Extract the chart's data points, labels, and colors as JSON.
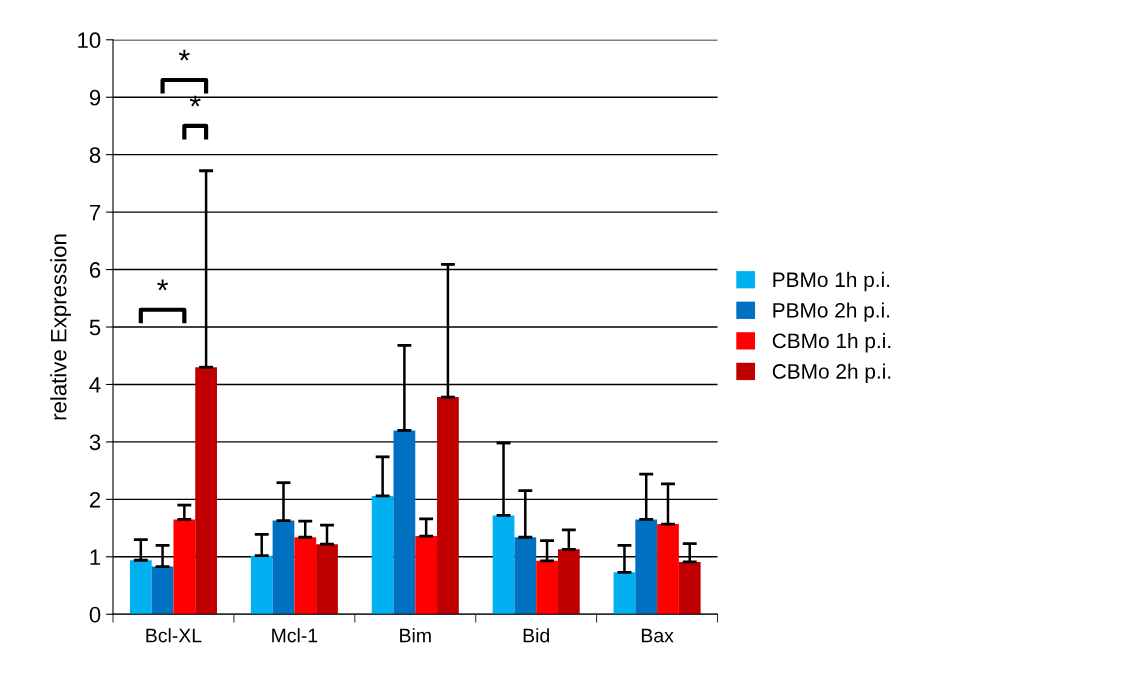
{
  "chart_data": {
    "type": "bar",
    "ylabel": "relative Expression",
    "categories": [
      "Bcl-XL",
      "Mcl-1",
      "Bim",
      "Bid",
      "Bax"
    ],
    "series": [
      {
        "name": "PBMo 1h p.i.",
        "color": "#00b0f0",
        "values": [
          0.94,
          1.02,
          2.06,
          1.72,
          0.73
        ],
        "errors": [
          [
            0.94,
            1.3
          ],
          [
            1.02,
            1.39
          ],
          [
            2.06,
            2.74
          ],
          [
            1.72,
            2.98
          ],
          [
            0.73,
            1.2
          ]
        ]
      },
      {
        "name": "PBMo 2h p.i.",
        "color": "#0070c0",
        "values": [
          0.83,
          1.63,
          3.2,
          1.34,
          1.65
        ],
        "errors": [
          [
            0.83,
            1.2
          ],
          [
            1.63,
            2.29
          ],
          [
            3.2,
            4.68
          ],
          [
            1.34,
            2.15
          ],
          [
            1.65,
            2.44
          ]
        ]
      },
      {
        "name": "CBMo 1h p.i.",
        "color": "#ff0000",
        "values": [
          1.65,
          1.34,
          1.36,
          0.93,
          1.57
        ],
        "errors": [
          [
            1.65,
            1.9
          ],
          [
            1.34,
            1.62
          ],
          [
            1.36,
            1.66
          ],
          [
            0.93,
            1.28
          ],
          [
            1.57,
            2.27
          ]
        ]
      },
      {
        "name": "CBMo 2h p.i.",
        "color": "#c00000",
        "values": [
          4.3,
          1.22,
          3.78,
          1.13,
          0.91
        ],
        "errors": [
          [
            4.3,
            7.72
          ],
          [
            1.22,
            1.55
          ],
          [
            3.78,
            6.09
          ],
          [
            1.13,
            1.47
          ],
          [
            0.91,
            1.23
          ]
        ]
      }
    ],
    "ylim": [
      0,
      10
    ],
    "yticks": [
      0,
      1,
      2,
      3,
      4,
      5,
      6,
      7,
      8,
      9,
      10
    ],
    "grid": "y",
    "legend": "right",
    "annotations": [
      "*",
      "*",
      "*"
    ]
  }
}
